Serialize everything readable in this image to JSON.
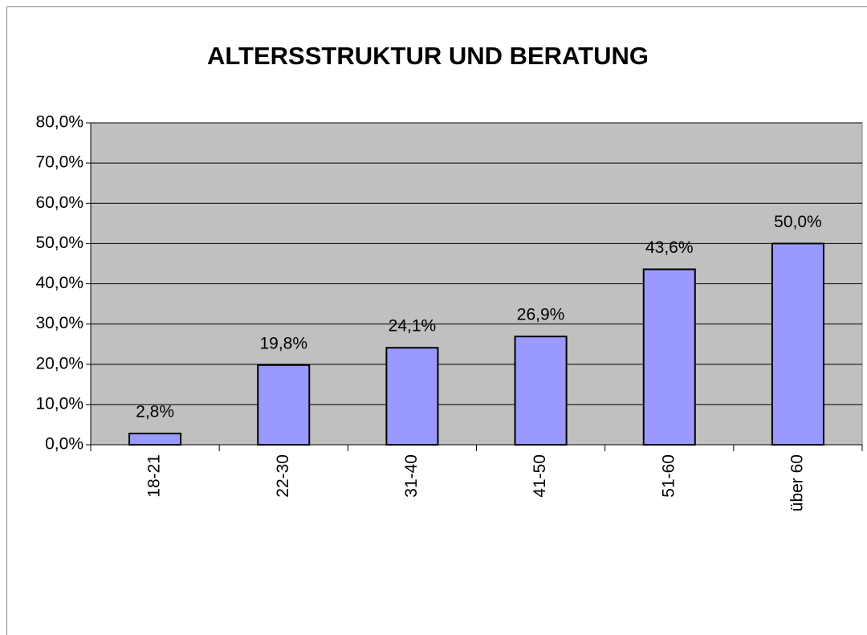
{
  "chart_data": {
    "type": "bar",
    "title": "ALTERSSTRUKTUR UND BERATUNG",
    "categories": [
      "18-21",
      "22-30",
      "31-40",
      "41-50",
      "51-60",
      "über 60"
    ],
    "values": [
      2.8,
      19.8,
      24.1,
      26.9,
      43.6,
      50.0
    ],
    "value_labels": [
      "2,8%",
      "19,8%",
      "24,1%",
      "26,9%",
      "43,6%",
      "50,0%"
    ],
    "color": "#9999ff",
    "ylim": [
      0,
      80
    ],
    "yticks": [
      {
        "value": 0,
        "label": "0,0%"
      },
      {
        "value": 10,
        "label": "10,0%"
      },
      {
        "value": 20,
        "label": "20,0%"
      },
      {
        "value": 30,
        "label": "30,0%"
      },
      {
        "value": 40,
        "label": "40,0%"
      },
      {
        "value": 50,
        "label": "50,0%"
      },
      {
        "value": 60,
        "label": "60,0%"
      },
      {
        "value": 70,
        "label": "70,0%"
      },
      {
        "value": 80,
        "label": "80,0%"
      }
    ],
    "grid": true
  }
}
